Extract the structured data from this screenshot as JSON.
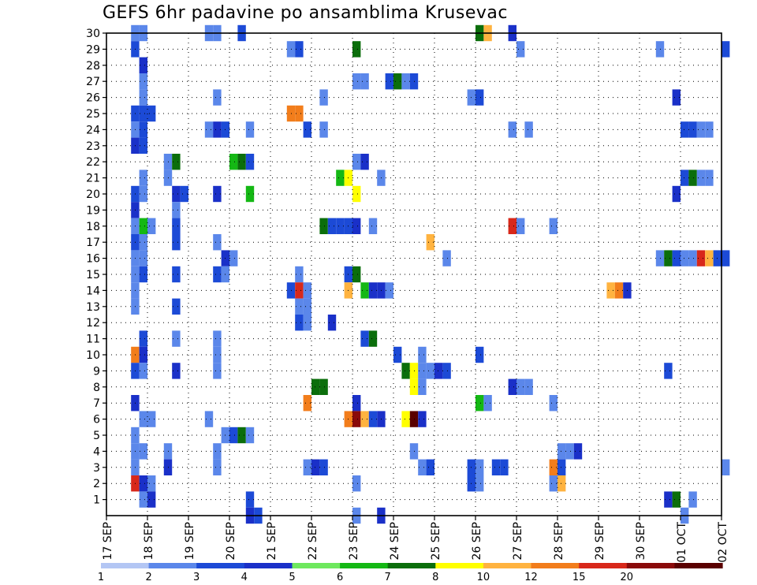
{
  "chart_data": {
    "type": "heatmap",
    "title": "GEFS 6hr padavine po ansamblima Krusevac",
    "xlabel": "",
    "ylabel": "",
    "x_tick_labels": [
      "17 SEP",
      "18 SEP",
      "19 SEP",
      "20 SEP",
      "21 SEP",
      "22 SEP",
      "23 SEP",
      "24 SEP",
      "25 SEP",
      "26 SEP",
      "27 SEP",
      "28 SEP",
      "29 SEP",
      "30 SEP",
      "01 OCT",
      "02 OCT"
    ],
    "x_tick_days": [
      0,
      1,
      2,
      3,
      4,
      5,
      6,
      7,
      8,
      9,
      10,
      11,
      12,
      13,
      14,
      15
    ],
    "x_range_days": [
      0,
      15
    ],
    "y_tick_labels": [
      "1",
      "2",
      "3",
      "4",
      "5",
      "6",
      "7",
      "8",
      "9",
      "10",
      "11",
      "12",
      "13",
      "14",
      "15",
      "16",
      "17",
      "18",
      "19",
      "20",
      "21",
      "22",
      "23",
      "24",
      "25",
      "26",
      "27",
      "28",
      "29",
      "30"
    ],
    "y_range": [
      0,
      30
    ],
    "grid": true,
    "colorbar": {
      "labels": [
        "1",
        "2",
        "3",
        "4",
        "5",
        "6",
        "7",
        "8",
        "10",
        "12",
        "15",
        "20"
      ],
      "colors": [
        "#b3c6f4",
        "#5b87ea",
        "#1c4ad6",
        "#1a30c8",
        "#6ee85e",
        "#14b814",
        "#0b6e0b",
        "#ffff00",
        "#ffb340",
        "#f27d1b",
        "#d8281a",
        "#8a0a0a",
        "#5a0000"
      ]
    },
    "cells": [
      {
        "d": 0.6,
        "m": 30,
        "v": 1
      },
      {
        "d": 0.8,
        "m": 30,
        "v": 1
      },
      {
        "d": 2.4,
        "m": 30,
        "v": 1
      },
      {
        "d": 2.6,
        "m": 30,
        "v": 1
      },
      {
        "d": 3.2,
        "m": 30,
        "v": 2
      },
      {
        "d": 9.0,
        "m": 30,
        "v": 6
      },
      {
        "d": 9.2,
        "m": 30,
        "v": 8
      },
      {
        "d": 9.8,
        "m": 30,
        "v": 3
      },
      {
        "d": 0.6,
        "m": 29,
        "v": 2
      },
      {
        "d": 4.4,
        "m": 29,
        "v": 1
      },
      {
        "d": 4.6,
        "m": 29,
        "v": 2
      },
      {
        "d": 6.0,
        "m": 29,
        "v": 6
      },
      {
        "d": 10.0,
        "m": 29,
        "v": 1
      },
      {
        "d": 13.4,
        "m": 29,
        "v": 1
      },
      {
        "d": 15.0,
        "m": 29,
        "v": 2
      },
      {
        "d": 0.8,
        "m": 28,
        "v": 3
      },
      {
        "d": 0.8,
        "m": 27,
        "v": 1
      },
      {
        "d": 6.0,
        "m": 27,
        "v": 1
      },
      {
        "d": 6.2,
        "m": 27,
        "v": 1
      },
      {
        "d": 6.8,
        "m": 27,
        "v": 2
      },
      {
        "d": 7.0,
        "m": 27,
        "v": 6
      },
      {
        "d": 7.2,
        "m": 27,
        "v": 1
      },
      {
        "d": 7.4,
        "m": 27,
        "v": 2
      },
      {
        "d": 0.8,
        "m": 26,
        "v": 1
      },
      {
        "d": 2.6,
        "m": 26,
        "v": 1
      },
      {
        "d": 5.2,
        "m": 26,
        "v": 1
      },
      {
        "d": 8.8,
        "m": 26,
        "v": 1
      },
      {
        "d": 9.0,
        "m": 26,
        "v": 2
      },
      {
        "d": 13.8,
        "m": 26,
        "v": 3
      },
      {
        "d": 0.6,
        "m": 25,
        "v": 2
      },
      {
        "d": 0.8,
        "m": 25,
        "v": 2
      },
      {
        "d": 1.0,
        "m": 25,
        "v": 2
      },
      {
        "d": 4.4,
        "m": 25,
        "v": 9
      },
      {
        "d": 4.6,
        "m": 25,
        "v": 9
      },
      {
        "d": 0.6,
        "m": 24,
        "v": 1
      },
      {
        "d": 0.8,
        "m": 24,
        "v": 2
      },
      {
        "d": 2.4,
        "m": 24,
        "v": 1
      },
      {
        "d": 2.6,
        "m": 24,
        "v": 3
      },
      {
        "d": 2.8,
        "m": 24,
        "v": 2
      },
      {
        "d": 3.4,
        "m": 24,
        "v": 1
      },
      {
        "d": 4.8,
        "m": 24,
        "v": 2
      },
      {
        "d": 5.2,
        "m": 24,
        "v": 1
      },
      {
        "d": 9.8,
        "m": 24,
        "v": 1
      },
      {
        "d": 10.2,
        "m": 24,
        "v": 1
      },
      {
        "d": 14.0,
        "m": 24,
        "v": 2
      },
      {
        "d": 14.2,
        "m": 24,
        "v": 2
      },
      {
        "d": 14.4,
        "m": 24,
        "v": 1
      },
      {
        "d": 14.6,
        "m": 24,
        "v": 1
      },
      {
        "d": 0.6,
        "m": 23,
        "v": 3
      },
      {
        "d": 0.8,
        "m": 23,
        "v": 2
      },
      {
        "d": 1.4,
        "m": 22,
        "v": 1
      },
      {
        "d": 1.6,
        "m": 22,
        "v": 6
      },
      {
        "d": 3.0,
        "m": 22,
        "v": 5
      },
      {
        "d": 3.2,
        "m": 22,
        "v": 6
      },
      {
        "d": 3.4,
        "m": 22,
        "v": 2
      },
      {
        "d": 6.0,
        "m": 22,
        "v": 1
      },
      {
        "d": 6.2,
        "m": 22,
        "v": 3
      },
      {
        "d": 0.8,
        "m": 21,
        "v": 1
      },
      {
        "d": 1.4,
        "m": 21,
        "v": 1
      },
      {
        "d": 5.6,
        "m": 21,
        "v": 5
      },
      {
        "d": 5.8,
        "m": 21,
        "v": 7
      },
      {
        "d": 6.6,
        "m": 21,
        "v": 1
      },
      {
        "d": 14.0,
        "m": 21,
        "v": 2
      },
      {
        "d": 14.2,
        "m": 21,
        "v": 6
      },
      {
        "d": 14.4,
        "m": 21,
        "v": 1
      },
      {
        "d": 14.6,
        "m": 21,
        "v": 1
      },
      {
        "d": 0.6,
        "m": 20,
        "v": 2
      },
      {
        "d": 0.8,
        "m": 20,
        "v": 1
      },
      {
        "d": 1.6,
        "m": 20,
        "v": 3
      },
      {
        "d": 1.8,
        "m": 20,
        "v": 2
      },
      {
        "d": 2.6,
        "m": 20,
        "v": 3
      },
      {
        "d": 3.4,
        "m": 20,
        "v": 5
      },
      {
        "d": 6.0,
        "m": 20,
        "v": 7
      },
      {
        "d": 13.8,
        "m": 20,
        "v": 3
      },
      {
        "d": 0.6,
        "m": 19,
        "v": 3
      },
      {
        "d": 1.6,
        "m": 19,
        "v": 1
      },
      {
        "d": 0.6,
        "m": 18,
        "v": 1
      },
      {
        "d": 0.8,
        "m": 18,
        "v": 5
      },
      {
        "d": 1.0,
        "m": 18,
        "v": 1
      },
      {
        "d": 1.6,
        "m": 18,
        "v": 2
      },
      {
        "d": 5.2,
        "m": 18,
        "v": 6
      },
      {
        "d": 5.4,
        "m": 18,
        "v": 2
      },
      {
        "d": 5.6,
        "m": 18,
        "v": 2
      },
      {
        "d": 5.8,
        "m": 18,
        "v": 2
      },
      {
        "d": 6.0,
        "m": 18,
        "v": 3
      },
      {
        "d": 6.4,
        "m": 18,
        "v": 1
      },
      {
        "d": 9.8,
        "m": 18,
        "v": 10
      },
      {
        "d": 10.0,
        "m": 18,
        "v": 1
      },
      {
        "d": 10.8,
        "m": 18,
        "v": 1
      },
      {
        "d": 0.6,
        "m": 17,
        "v": 2
      },
      {
        "d": 0.8,
        "m": 17,
        "v": 1
      },
      {
        "d": 1.6,
        "m": 17,
        "v": 2
      },
      {
        "d": 2.6,
        "m": 17,
        "v": 1
      },
      {
        "d": 7.8,
        "m": 17,
        "v": 8
      },
      {
        "d": 0.6,
        "m": 16,
        "v": 1
      },
      {
        "d": 0.8,
        "m": 16,
        "v": 1
      },
      {
        "d": 2.8,
        "m": 16,
        "v": 3
      },
      {
        "d": 3.0,
        "m": 16,
        "v": 1
      },
      {
        "d": 8.2,
        "m": 16,
        "v": 1
      },
      {
        "d": 13.4,
        "m": 16,
        "v": 1
      },
      {
        "d": 13.6,
        "m": 16,
        "v": 6
      },
      {
        "d": 13.8,
        "m": 16,
        "v": 2
      },
      {
        "d": 14.0,
        "m": 16,
        "v": 1
      },
      {
        "d": 14.2,
        "m": 16,
        "v": 1
      },
      {
        "d": 14.4,
        "m": 16,
        "v": 10
      },
      {
        "d": 14.6,
        "m": 16,
        "v": 8
      },
      {
        "d": 14.8,
        "m": 16,
        "v": 2
      },
      {
        "d": 15.0,
        "m": 16,
        "v": 2
      },
      {
        "d": 0.6,
        "m": 15,
        "v": 1
      },
      {
        "d": 0.8,
        "m": 15,
        "v": 2
      },
      {
        "d": 1.6,
        "m": 15,
        "v": 2
      },
      {
        "d": 2.6,
        "m": 15,
        "v": 2
      },
      {
        "d": 2.8,
        "m": 15,
        "v": 1
      },
      {
        "d": 4.6,
        "m": 15,
        "v": 1
      },
      {
        "d": 5.8,
        "m": 15,
        "v": 2
      },
      {
        "d": 6.0,
        "m": 15,
        "v": 6
      },
      {
        "d": 0.6,
        "m": 14,
        "v": 1
      },
      {
        "d": 4.4,
        "m": 14,
        "v": 2
      },
      {
        "d": 4.6,
        "m": 14,
        "v": 10
      },
      {
        "d": 4.8,
        "m": 14,
        "v": 1
      },
      {
        "d": 5.8,
        "m": 14,
        "v": 8
      },
      {
        "d": 6.2,
        "m": 14,
        "v": 5
      },
      {
        "d": 6.4,
        "m": 14,
        "v": 3
      },
      {
        "d": 6.6,
        "m": 14,
        "v": 3
      },
      {
        "d": 6.8,
        "m": 14,
        "v": 1
      },
      {
        "d": 12.2,
        "m": 14,
        "v": 8
      },
      {
        "d": 12.4,
        "m": 14,
        "v": 9
      },
      {
        "d": 12.6,
        "m": 14,
        "v": 3
      },
      {
        "d": 0.6,
        "m": 13,
        "v": 1
      },
      {
        "d": 1.6,
        "m": 13,
        "v": 2
      },
      {
        "d": 4.6,
        "m": 13,
        "v": 1
      },
      {
        "d": 4.8,
        "m": 13,
        "v": 1
      },
      {
        "d": 4.6,
        "m": 12,
        "v": 2
      },
      {
        "d": 4.8,
        "m": 12,
        "v": 1
      },
      {
        "d": 5.4,
        "m": 12,
        "v": 3
      },
      {
        "d": 0.8,
        "m": 11,
        "v": 2
      },
      {
        "d": 1.6,
        "m": 11,
        "v": 1
      },
      {
        "d": 2.6,
        "m": 11,
        "v": 1
      },
      {
        "d": 6.2,
        "m": 11,
        "v": 2
      },
      {
        "d": 6.4,
        "m": 11,
        "v": 6
      },
      {
        "d": 0.6,
        "m": 10,
        "v": 9
      },
      {
        "d": 0.8,
        "m": 10,
        "v": 3
      },
      {
        "d": 2.6,
        "m": 10,
        "v": 1
      },
      {
        "d": 7.0,
        "m": 10,
        "v": 2
      },
      {
        "d": 7.6,
        "m": 10,
        "v": 1
      },
      {
        "d": 9.0,
        "m": 10,
        "v": 2
      },
      {
        "d": 0.6,
        "m": 9,
        "v": 2
      },
      {
        "d": 0.8,
        "m": 9,
        "v": 1
      },
      {
        "d": 1.6,
        "m": 9,
        "v": 3
      },
      {
        "d": 2.6,
        "m": 9,
        "v": 1
      },
      {
        "d": 7.2,
        "m": 9,
        "v": 6
      },
      {
        "d": 7.4,
        "m": 9,
        "v": 7
      },
      {
        "d": 7.6,
        "m": 9,
        "v": 1
      },
      {
        "d": 7.8,
        "m": 9,
        "v": 1
      },
      {
        "d": 8.0,
        "m": 9,
        "v": 3
      },
      {
        "d": 8.2,
        "m": 9,
        "v": 2
      },
      {
        "d": 13.6,
        "m": 9,
        "v": 2
      },
      {
        "d": 5.0,
        "m": 8,
        "v": 6
      },
      {
        "d": 5.2,
        "m": 8,
        "v": 6
      },
      {
        "d": 7.4,
        "m": 8,
        "v": 7
      },
      {
        "d": 7.6,
        "m": 8,
        "v": 1
      },
      {
        "d": 9.8,
        "m": 8,
        "v": 3
      },
      {
        "d": 10.0,
        "m": 8,
        "v": 1
      },
      {
        "d": 10.2,
        "m": 8,
        "v": 1
      },
      {
        "d": 0.6,
        "m": 7,
        "v": 3
      },
      {
        "d": 4.8,
        "m": 7,
        "v": 9
      },
      {
        "d": 6.0,
        "m": 7,
        "v": 3
      },
      {
        "d": 9.0,
        "m": 7,
        "v": 5
      },
      {
        "d": 9.2,
        "m": 7,
        "v": 1
      },
      {
        "d": 10.8,
        "m": 7,
        "v": 1
      },
      {
        "d": 0.8,
        "m": 6,
        "v": 1
      },
      {
        "d": 1.0,
        "m": 6,
        "v": 1
      },
      {
        "d": 2.4,
        "m": 6,
        "v": 1
      },
      {
        "d": 5.8,
        "m": 6,
        "v": 9
      },
      {
        "d": 6.0,
        "m": 6,
        "v": 11
      },
      {
        "d": 6.2,
        "m": 6,
        "v": 8
      },
      {
        "d": 6.4,
        "m": 6,
        "v": 2
      },
      {
        "d": 6.6,
        "m": 6,
        "v": 3
      },
      {
        "d": 7.2,
        "m": 6,
        "v": 7
      },
      {
        "d": 7.4,
        "m": 6,
        "v": 12
      },
      {
        "d": 7.6,
        "m": 6,
        "v": 3
      },
      {
        "d": 0.6,
        "m": 5,
        "v": 1
      },
      {
        "d": 2.8,
        "m": 5,
        "v": 1
      },
      {
        "d": 3.0,
        "m": 5,
        "v": 2
      },
      {
        "d": 3.2,
        "m": 5,
        "v": 6
      },
      {
        "d": 3.4,
        "m": 5,
        "v": 1
      },
      {
        "d": 0.6,
        "m": 4,
        "v": 1
      },
      {
        "d": 0.8,
        "m": 4,
        "v": 1
      },
      {
        "d": 1.4,
        "m": 4,
        "v": 1
      },
      {
        "d": 2.6,
        "m": 4,
        "v": 1
      },
      {
        "d": 7.4,
        "m": 4,
        "v": 1
      },
      {
        "d": 11.0,
        "m": 4,
        "v": 1
      },
      {
        "d": 11.2,
        "m": 4,
        "v": 1
      },
      {
        "d": 11.4,
        "m": 4,
        "v": 3
      },
      {
        "d": 0.6,
        "m": 3,
        "v": 1
      },
      {
        "d": 1.4,
        "m": 3,
        "v": 3
      },
      {
        "d": 2.6,
        "m": 3,
        "v": 1
      },
      {
        "d": 4.8,
        "m": 3,
        "v": 1
      },
      {
        "d": 5.0,
        "m": 3,
        "v": 3
      },
      {
        "d": 5.2,
        "m": 3,
        "v": 2
      },
      {
        "d": 7.6,
        "m": 3,
        "v": 1
      },
      {
        "d": 7.8,
        "m": 3,
        "v": 2
      },
      {
        "d": 8.8,
        "m": 3,
        "v": 2
      },
      {
        "d": 9.0,
        "m": 3,
        "v": 1
      },
      {
        "d": 9.4,
        "m": 3,
        "v": 2
      },
      {
        "d": 9.6,
        "m": 3,
        "v": 2
      },
      {
        "d": 10.8,
        "m": 3,
        "v": 9
      },
      {
        "d": 11.0,
        "m": 3,
        "v": 2
      },
      {
        "d": 15.0,
        "m": 3,
        "v": 1
      },
      {
        "d": 0.6,
        "m": 2,
        "v": 10
      },
      {
        "d": 0.8,
        "m": 2,
        "v": 3
      },
      {
        "d": 1.0,
        "m": 2,
        "v": 1
      },
      {
        "d": 6.0,
        "m": 2,
        "v": 1
      },
      {
        "d": 8.8,
        "m": 2,
        "v": 2
      },
      {
        "d": 9.0,
        "m": 2,
        "v": 1
      },
      {
        "d": 10.8,
        "m": 2,
        "v": 1
      },
      {
        "d": 11.0,
        "m": 2,
        "v": 8
      },
      {
        "d": 0.8,
        "m": 1,
        "v": 1
      },
      {
        "d": 1.0,
        "m": 1,
        "v": 3
      },
      {
        "d": 3.4,
        "m": 1,
        "v": 2
      },
      {
        "d": 13.6,
        "m": 1,
        "v": 3
      },
      {
        "d": 13.8,
        "m": 1,
        "v": 6
      },
      {
        "d": 14.2,
        "m": 1,
        "v": 1
      },
      {
        "d": 3.4,
        "m": 0,
        "v": 3
      },
      {
        "d": 3.6,
        "m": 0,
        "v": 2
      },
      {
        "d": 6.0,
        "m": 0,
        "v": 1
      },
      {
        "d": 6.6,
        "m": 0,
        "v": 3
      },
      {
        "d": 14.0,
        "m": 0,
        "v": 1
      }
    ]
  }
}
